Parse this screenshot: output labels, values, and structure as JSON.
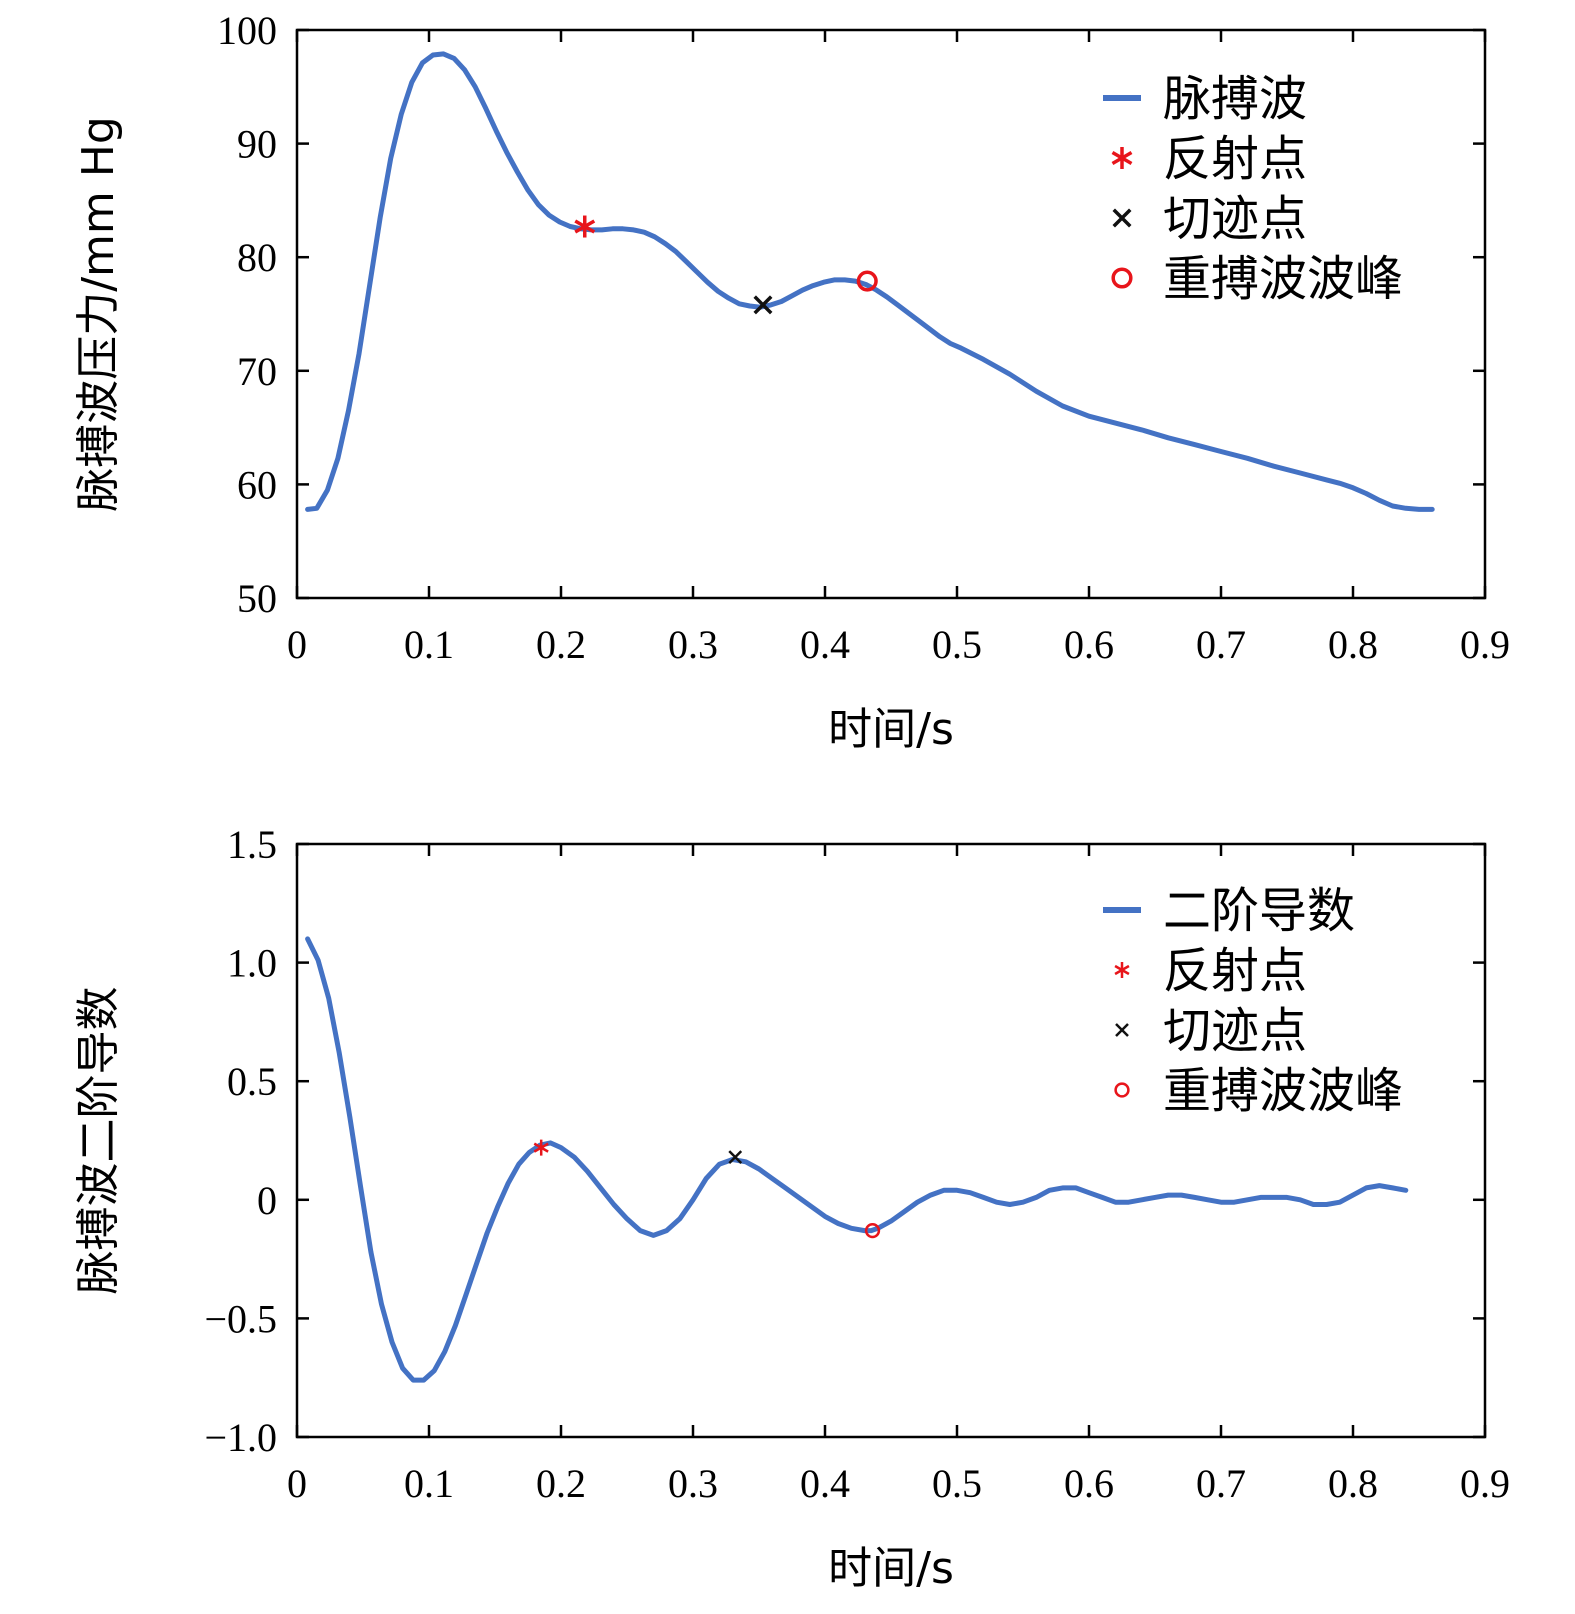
{
  "colors": {
    "series": "#4472C4",
    "reflection": "#e8151b",
    "notch": "#111111",
    "dicrotic_peak": "#e8151b"
  },
  "chart_data": [
    {
      "type": "line",
      "xlabel": "时间/s",
      "ylabel": "脉搏波压力/mm Hg",
      "xlim": [
        0,
        0.9
      ],
      "ylim": [
        50,
        100
      ],
      "xticks": [
        0,
        0.1,
        0.2,
        0.3,
        0.4,
        0.5,
        0.6,
        0.7,
        0.8,
        0.9
      ],
      "xtick_labels": [
        "0",
        "0.1",
        "0.2",
        "0.3",
        "0.4",
        "0.5",
        "0.6",
        "0.7",
        "0.8",
        "0.9"
      ],
      "yticks": [
        50,
        60,
        70,
        80,
        90,
        100
      ],
      "ytick_labels": [
        "50",
        "60",
        "70",
        "80",
        "90",
        "100"
      ],
      "grid": false,
      "legend_position": "top-right",
      "series": [
        {
          "name": "脉搏波",
          "marker": "line",
          "x": [
            0.008,
            0.015,
            0.023,
            0.031,
            0.039,
            0.047,
            0.055,
            0.063,
            0.071,
            0.079,
            0.087,
            0.095,
            0.103,
            0.111,
            0.119,
            0.127,
            0.135,
            0.143,
            0.151,
            0.159,
            0.167,
            0.175,
            0.183,
            0.191,
            0.199,
            0.207,
            0.215,
            0.223,
            0.231,
            0.239,
            0.247,
            0.255,
            0.263,
            0.271,
            0.279,
            0.287,
            0.295,
            0.303,
            0.311,
            0.319,
            0.327,
            0.335,
            0.343,
            0.351,
            0.359,
            0.367,
            0.375,
            0.383,
            0.391,
            0.399,
            0.407,
            0.415,
            0.423,
            0.431,
            0.439,
            0.447,
            0.455,
            0.463,
            0.471,
            0.479,
            0.487,
            0.495,
            0.503,
            0.52,
            0.54,
            0.56,
            0.58,
            0.6,
            0.62,
            0.64,
            0.66,
            0.68,
            0.7,
            0.72,
            0.74,
            0.76,
            0.78,
            0.79,
            0.8,
            0.81,
            0.82,
            0.83,
            0.84,
            0.85,
            0.86
          ],
          "y": [
            57.8,
            57.9,
            59.5,
            62.3,
            66.5,
            71.5,
            77.5,
            83.5,
            88.7,
            92.6,
            95.4,
            97.1,
            97.8,
            97.9,
            97.5,
            96.5,
            95.0,
            93.1,
            91.1,
            89.2,
            87.5,
            85.9,
            84.6,
            83.7,
            83.1,
            82.7,
            82.5,
            82.4,
            82.4,
            82.5,
            82.5,
            82.4,
            82.2,
            81.8,
            81.2,
            80.5,
            79.6,
            78.7,
            77.8,
            77.0,
            76.4,
            75.9,
            75.7,
            75.6,
            75.8,
            76.1,
            76.6,
            77.1,
            77.5,
            77.8,
            78.0,
            78.0,
            77.9,
            77.6,
            77.1,
            76.5,
            75.8,
            75.1,
            74.4,
            73.7,
            73.0,
            72.4,
            72.0,
            71.0,
            69.7,
            68.2,
            66.9,
            66.0,
            65.4,
            64.8,
            64.1,
            63.5,
            62.9,
            62.3,
            61.6,
            61.0,
            60.4,
            60.1,
            59.7,
            59.2,
            58.6,
            58.1,
            57.9,
            57.8,
            57.8
          ]
        },
        {
          "name": "反射点",
          "marker": "asterisk",
          "x": [
            0.218
          ],
          "y": [
            82.7
          ]
        },
        {
          "name": "切迹点",
          "marker": "cross",
          "x": [
            0.353
          ],
          "y": [
            75.8
          ]
        },
        {
          "name": "重搏波波峰",
          "marker": "circle",
          "x": [
            0.432
          ],
          "y": [
            77.9
          ]
        }
      ]
    },
    {
      "type": "line",
      "xlabel": "时间/s",
      "ylabel": "脉搏波二阶导数",
      "xlim": [
        0,
        0.9
      ],
      "ylim": [
        -1.0,
        1.5
      ],
      "xticks": [
        0,
        0.1,
        0.2,
        0.3,
        0.4,
        0.5,
        0.6,
        0.7,
        0.8,
        0.9
      ],
      "xtick_labels": [
        "0",
        "0.1",
        "0.2",
        "0.3",
        "0.4",
        "0.5",
        "0.6",
        "0.7",
        "0.8",
        "0.9"
      ],
      "yticks": [
        -1.0,
        -0.5,
        0,
        0.5,
        1.0,
        1.5
      ],
      "ytick_labels": [
        "−1.0",
        "−0.5",
        "0",
        "0.5",
        "1.0",
        "1.5"
      ],
      "grid": false,
      "legend_position": "top-right",
      "series": [
        {
          "name": "二阶导数",
          "marker": "line",
          "x": [
            0.008,
            0.016,
            0.024,
            0.032,
            0.04,
            0.048,
            0.056,
            0.064,
            0.072,
            0.08,
            0.088,
            0.096,
            0.104,
            0.112,
            0.12,
            0.128,
            0.136,
            0.144,
            0.152,
            0.16,
            0.168,
            0.176,
            0.184,
            0.192,
            0.2,
            0.21,
            0.22,
            0.23,
            0.24,
            0.25,
            0.26,
            0.27,
            0.28,
            0.29,
            0.3,
            0.31,
            0.32,
            0.33,
            0.34,
            0.35,
            0.36,
            0.37,
            0.38,
            0.39,
            0.4,
            0.41,
            0.42,
            0.43,
            0.435,
            0.44,
            0.45,
            0.46,
            0.47,
            0.48,
            0.49,
            0.5,
            0.51,
            0.52,
            0.53,
            0.54,
            0.55,
            0.56,
            0.57,
            0.58,
            0.59,
            0.6,
            0.61,
            0.62,
            0.63,
            0.64,
            0.65,
            0.66,
            0.67,
            0.68,
            0.69,
            0.7,
            0.71,
            0.72,
            0.73,
            0.74,
            0.75,
            0.76,
            0.77,
            0.78,
            0.79,
            0.8,
            0.81,
            0.82,
            0.83,
            0.84
          ],
          "y": [
            1.1,
            1.01,
            0.85,
            0.62,
            0.35,
            0.06,
            -0.22,
            -0.44,
            -0.6,
            -0.71,
            -0.76,
            -0.76,
            -0.72,
            -0.64,
            -0.53,
            -0.4,
            -0.27,
            -0.14,
            -0.03,
            0.07,
            0.15,
            0.2,
            0.23,
            0.24,
            0.22,
            0.18,
            0.12,
            0.05,
            -0.02,
            -0.08,
            -0.13,
            -0.15,
            -0.13,
            -0.08,
            0.0,
            0.09,
            0.15,
            0.17,
            0.16,
            0.13,
            0.09,
            0.05,
            0.01,
            -0.03,
            -0.07,
            -0.1,
            -0.12,
            -0.13,
            -0.13,
            -0.12,
            -0.09,
            -0.05,
            -0.01,
            0.02,
            0.04,
            0.04,
            0.03,
            0.01,
            -0.01,
            -0.02,
            -0.01,
            0.01,
            0.04,
            0.05,
            0.05,
            0.03,
            0.01,
            -0.01,
            -0.01,
            0.0,
            0.01,
            0.02,
            0.02,
            0.01,
            0.0,
            -0.01,
            -0.01,
            0.0,
            0.01,
            0.01,
            0.01,
            0.0,
            -0.02,
            -0.02,
            -0.01,
            0.02,
            0.05,
            0.06,
            0.05,
            0.04
          ]
        },
        {
          "name": "反射点",
          "marker": "asterisk",
          "x": [
            0.185
          ],
          "y": [
            0.22
          ]
        },
        {
          "name": "切迹点",
          "marker": "cross",
          "x": [
            0.332
          ],
          "y": [
            0.18
          ]
        },
        {
          "name": "重搏波波峰",
          "marker": "circle",
          "x": [
            0.436
          ],
          "y": [
            -0.13
          ]
        }
      ]
    }
  ]
}
